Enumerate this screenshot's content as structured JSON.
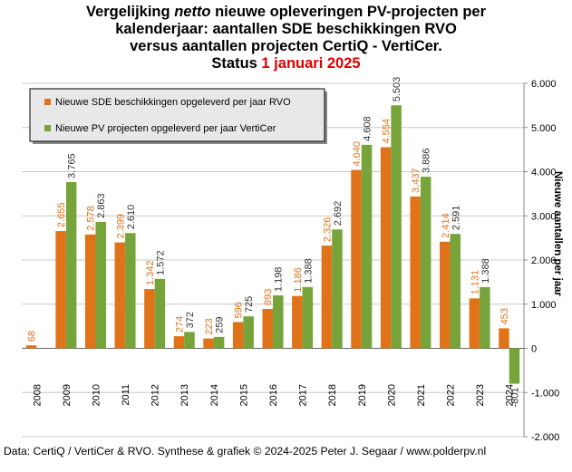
{
  "title": {
    "line1_a": "Vergelijking ",
    "line1_italic": "netto",
    "line1_b": " nieuwe opleveringen PV-projecten per",
    "line2": "kalenderjaar: aantallen SDE beschikkingen RVO",
    "line3": "versus aantallen projecten CertiQ - VertiCer.",
    "line4_a": "Status ",
    "line4_red": "1 januari 2025"
  },
  "source": "Data: CertiQ / VertiCer & RVO. Synthese & grafiek © 2024-2025 Peter J. Segaar / www.polderpv.nl",
  "colors": {
    "rvo": "#e0731a",
    "verticer": "#76a33a",
    "grid": "#c8c8c8",
    "plot_bg": "#ffffff",
    "legend_bg": "#e8e8e8"
  },
  "chart_data": {
    "type": "bar",
    "categories": [
      "2008",
      "2009",
      "2010",
      "2011",
      "2012",
      "2013",
      "2014",
      "2015",
      "2016",
      "2017",
      "2018",
      "2019",
      "2020",
      "2021",
      "2022",
      "2023",
      "2024"
    ],
    "series": [
      {
        "name": "Nieuwe SDE beschikkingen opgeleverd per jaar RVO",
        "values": [
          68,
          2655,
          2578,
          2399,
          1342,
          274,
          223,
          596,
          893,
          1186,
          2326,
          4040,
          4554,
          3437,
          2414,
          1131,
          453
        ],
        "labels": [
          "68",
          "2.655",
          "2.578",
          "2.399",
          "1.342",
          "274",
          "223",
          "596",
          "893",
          "1.186",
          "2.326",
          "4.040",
          "4.554",
          "3.437",
          "2.414",
          "1.131",
          "453"
        ]
      },
      {
        "name": "Nieuwe PV projecten opgeleverd per jaar VertiCer",
        "values": [
          null,
          3765,
          2863,
          2610,
          1572,
          372,
          259,
          725,
          1198,
          1388,
          2692,
          4608,
          5503,
          3886,
          2591,
          1388,
          -801
        ],
        "labels": [
          "",
          "3.765",
          "2.863",
          "2.610",
          "1.572",
          "372",
          "259",
          "725",
          "1.198",
          "1.388",
          "2.692",
          "4.608",
          "5.503",
          "3.886",
          "2.591",
          "1.388",
          "-801"
        ]
      }
    ],
    "ylabel": "Nieuwe aantallen per jaar",
    "ylim": [
      -2000,
      6000
    ],
    "yticks": [
      -2000,
      -1000,
      0,
      1000,
      2000,
      3000,
      4000,
      5000,
      6000
    ],
    "ytick_labels": [
      "-2.000",
      "-1.000",
      "0",
      "1.000",
      "2.000",
      "3.000",
      "4.000",
      "5.000",
      "6.000"
    ],
    "grid": true,
    "legend_position": "top-left"
  }
}
